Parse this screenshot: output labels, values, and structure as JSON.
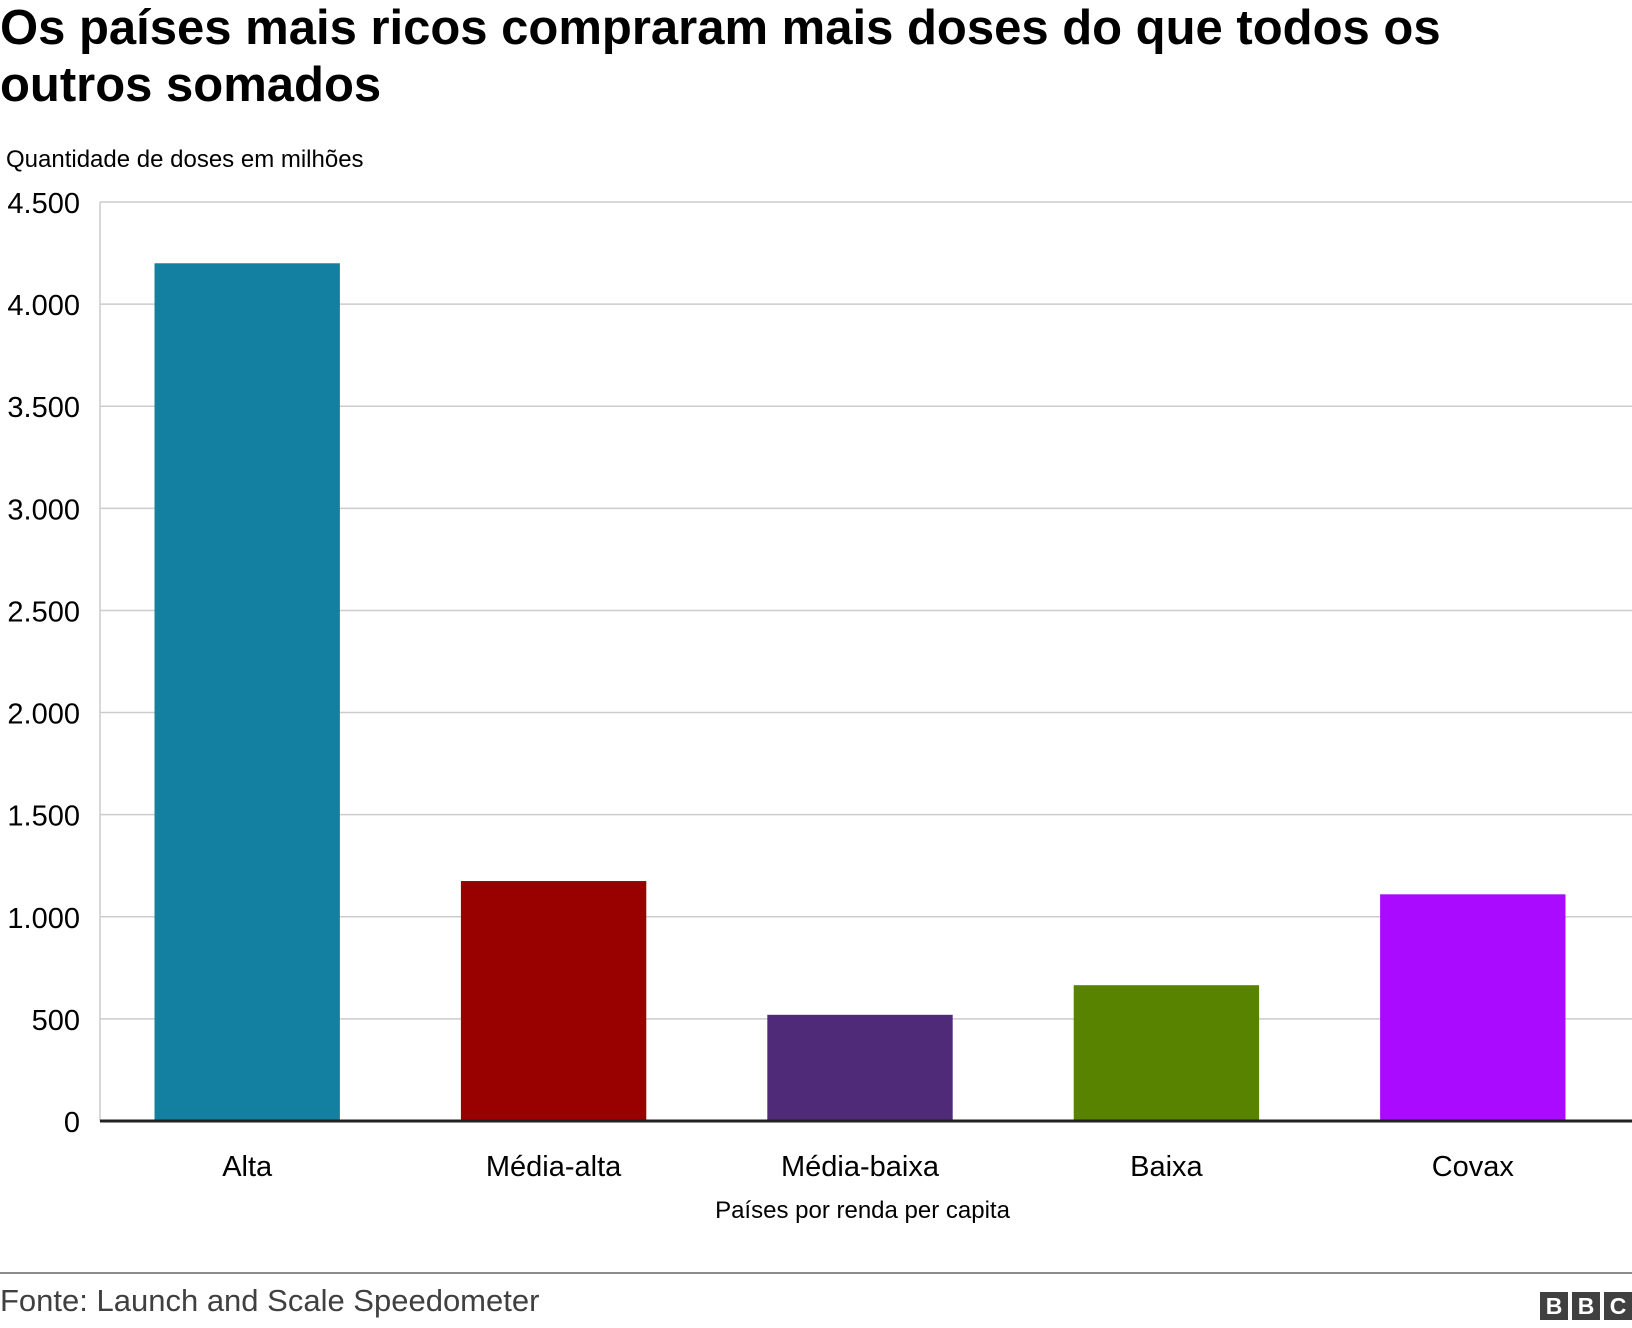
{
  "title": "Os países mais ricos compraram mais doses do que todos os outros somados",
  "source": "Fonte: Launch and Scale Speedometer",
  "logo": {
    "letters": [
      "B",
      "B",
      "C"
    ],
    "color": "#404040"
  },
  "chart_data": {
    "type": "bar",
    "ylabel": "Quantidade de doses em milhões",
    "xlabel": "Países por renda per capita",
    "categories": [
      "Alta",
      "Média-alta",
      "Média-baixa",
      "Baixa",
      "Covax"
    ],
    "values": [
      4200,
      1175,
      520,
      665,
      1110
    ],
    "colors": [
      "#1380A1",
      "#990000",
      "#4E2A78",
      "#588300",
      "#AA0AFF"
    ],
    "ylim": [
      0,
      4500
    ],
    "yticks": [
      0,
      500,
      1000,
      1500,
      2000,
      2500,
      3000,
      3500,
      4000,
      4500
    ],
    "ytick_labels": [
      "0",
      "500",
      "1.000",
      "1.500",
      "2.000",
      "2.500",
      "3.000",
      "3.500",
      "4.000",
      "4.500"
    ],
    "grid": true,
    "legend": "none"
  }
}
